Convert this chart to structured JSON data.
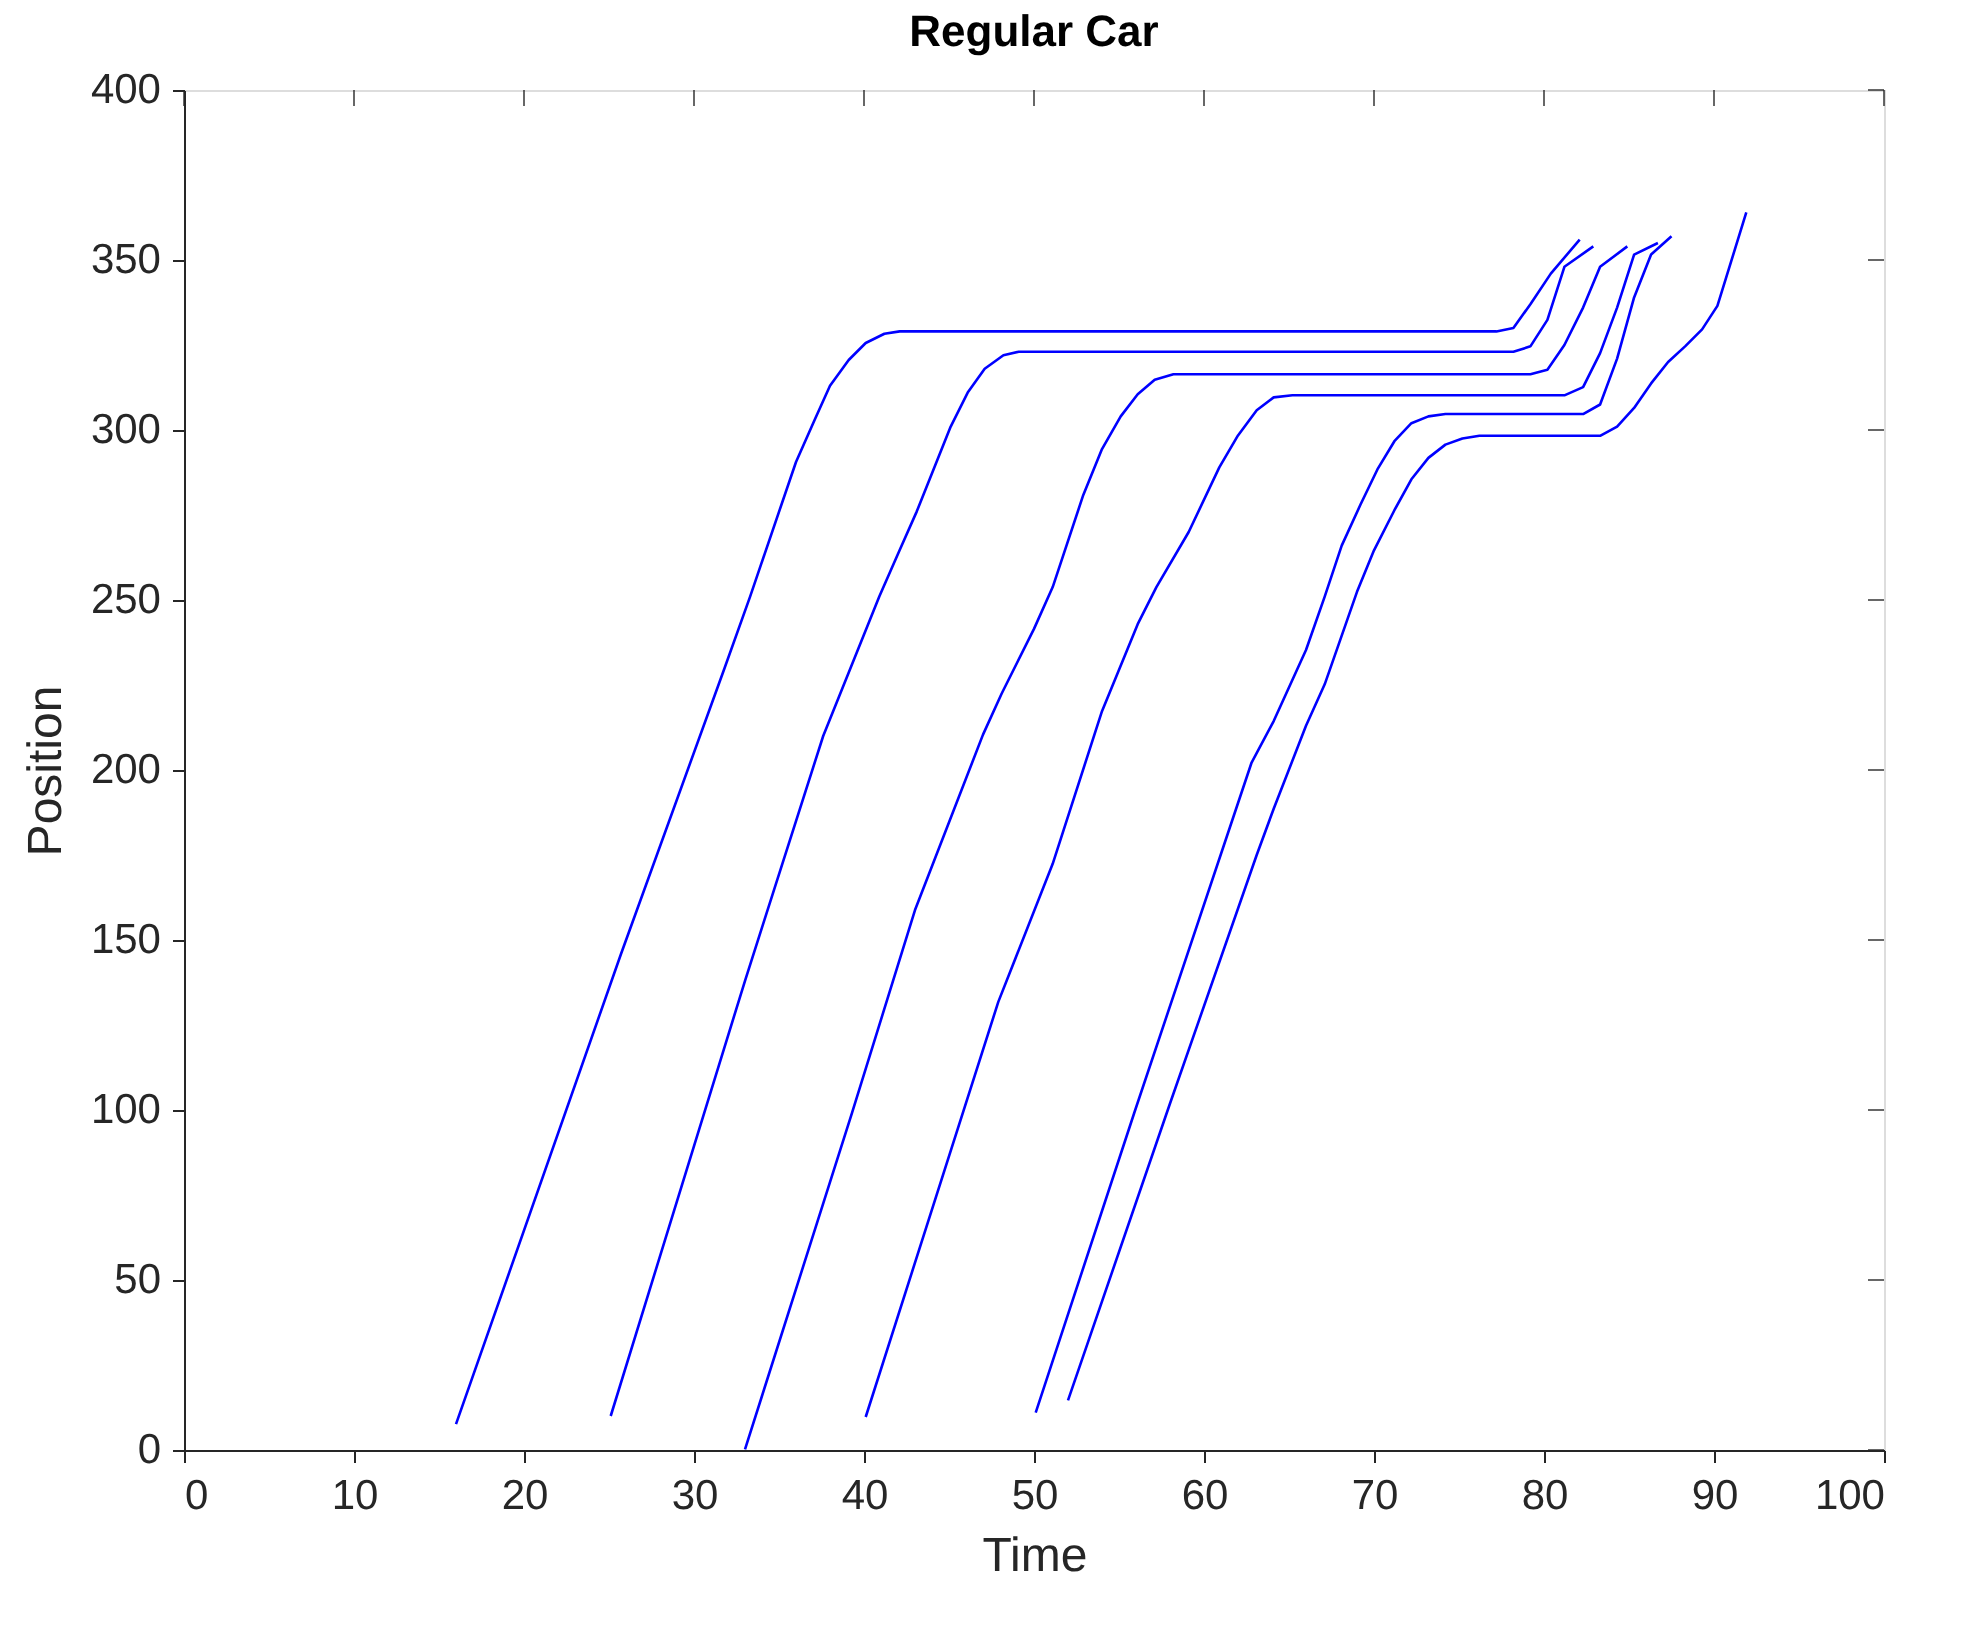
{
  "chart_data": {
    "type": "line",
    "title": "Regular Car",
    "xlabel": "Time",
    "ylabel": "Position",
    "xlim": [
      0,
      100
    ],
    "xticks": [
      0,
      10,
      20,
      30,
      40,
      50,
      60,
      70,
      80,
      90,
      100
    ],
    "ylim": [
      0,
      400
    ],
    "yticks": [
      0,
      50,
      100,
      150,
      200,
      250,
      300,
      350,
      400
    ],
    "grid": false,
    "marker": "none",
    "line_style": "solid",
    "series": [
      {
        "color": "#0000ff",
        "x": [
          16.0,
          25.7,
          31.8,
          33.3,
          36.0,
          37.1,
          38.0,
          39.1,
          40.1,
          41.2,
          42.1,
          77.2,
          78.2,
          79.2,
          80.4,
          82.1
        ],
        "values": [
          7.6,
          145.8,
          230,
          251,
          290.6,
          303,
          313,
          320.6,
          325.6,
          328.3,
          329,
          329,
          330,
          337,
          346,
          356
        ]
      },
      {
        "color": "#0000ff",
        "x": [
          25.1,
          33.0,
          37.6,
          40.9,
          42.1,
          43.1,
          45.1,
          46.1,
          47.1,
          48.2,
          49.1,
          78.2,
          79.2,
          80.2,
          81.2,
          82.9
        ],
        "values": [
          10,
          138,
          210,
          251,
          264.7,
          276,
          301,
          311,
          318,
          322,
          323,
          323,
          324.6,
          332.4,
          348,
          354
        ]
      },
      {
        "color": "#0000ff",
        "x": [
          33.0,
          39.3,
          43.0,
          47.0,
          48.1,
          50.0,
          51.1,
          52.9,
          54.0,
          55.1,
          56.1,
          57.1,
          58.2,
          79.2,
          80.2,
          81.2,
          82.3,
          83.3,
          84.9
        ],
        "values": [
          0.2,
          99.2,
          158.8,
          210.4,
          222.5,
          241.5,
          253.8,
          280.9,
          294.4,
          304,
          310.5,
          314.8,
          316.4,
          316.4,
          317.7,
          325,
          336,
          348,
          354
        ]
      },
      {
        "color": "#0000ff",
        "x": [
          40.1,
          47.9,
          51.1,
          54.0,
          56.1,
          57.2,
          59.1,
          60.9,
          62.0,
          63.1,
          64.1,
          65.2,
          81.2,
          82.3,
          83.3,
          84.3,
          85.3,
          86.7
        ],
        "values": [
          9.7,
          131.8,
          172.4,
          217.3,
          242.9,
          253.8,
          270,
          289,
          298.4,
          305.8,
          309.6,
          310.2,
          310.2,
          312.6,
          322.6,
          336,
          351.6,
          355
        ]
      },
      {
        "color": "#0000ff",
        "x": [
          50.1,
          55.9,
          62.8,
          64.1,
          66.0,
          67.1,
          68.1,
          69.2,
          70.2,
          71.2,
          72.2,
          73.2,
          74.2,
          82.3,
          83.3,
          84.3,
          85.3,
          86.3,
          87.5
        ],
        "values": [
          11,
          99.2,
          202.2,
          214.4,
          235.3,
          251,
          266,
          278,
          288.4,
          296.7,
          302,
          304,
          304.7,
          304.7,
          307.5,
          321,
          339,
          351.6,
          357
        ]
      },
      {
        "color": "#0000ff",
        "x": [
          52.0,
          58.0,
          63.1,
          64.1,
          66.0,
          67.1,
          69.0,
          70.0,
          71.2,
          72.2,
          73.2,
          74.2,
          75.2,
          76.2,
          83.3,
          84.3,
          85.3,
          86.3,
          87.3,
          88.3,
          89.3,
          90.2,
          91.9
        ],
        "values": [
          14.6,
          101.9,
          175,
          188.6,
          213,
          225.2,
          252.4,
          264.6,
          276.4,
          285.5,
          291.8,
          295.7,
          297.5,
          298.3,
          298.3,
          301,
          306.5,
          313.7,
          320,
          324.6,
          329.6,
          336.5,
          364
        ]
      }
    ]
  }
}
